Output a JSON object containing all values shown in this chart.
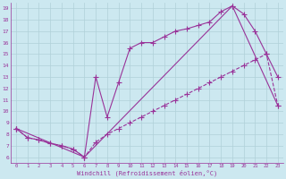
{
  "xlabel": "Windchill (Refroidissement éolien,°C)",
  "bg_color": "#cce8f0",
  "line_color": "#993399",
  "grid_color": "#b0d0d8",
  "series1_x": [
    0,
    1,
    2,
    3,
    4,
    5,
    6,
    7,
    8,
    9,
    10,
    11,
    12,
    13,
    14,
    15,
    16,
    17,
    18,
    19,
    20,
    21,
    22,
    23
  ],
  "series1_y": [
    8.5,
    7.7,
    7.5,
    7.2,
    7.0,
    6.7,
    6.0,
    13.0,
    9.5,
    12.5,
    15.5,
    16.0,
    16.0,
    16.5,
    17.0,
    17.2,
    17.5,
    17.8,
    18.7,
    19.2,
    18.5,
    17.0,
    15.0,
    13.0
  ],
  "series2_x": [
    0,
    1,
    2,
    3,
    4,
    5,
    6,
    7,
    8,
    9,
    10,
    11,
    12,
    13,
    14,
    15,
    16,
    17,
    18,
    19,
    20,
    21,
    22,
    23
  ],
  "series2_y": [
    8.5,
    7.7,
    7.5,
    7.2,
    7.0,
    6.7,
    6.0,
    7.3,
    8.0,
    8.5,
    9.0,
    9.5,
    10.0,
    10.5,
    11.0,
    11.5,
    12.0,
    12.5,
    13.0,
    13.5,
    14.0,
    14.5,
    15.0,
    10.5
  ],
  "series3_x": [
    0,
    6,
    19,
    23
  ],
  "series3_y": [
    8.5,
    6.0,
    19.2,
    10.5
  ],
  "xlim": [
    -0.5,
    23.5
  ],
  "ylim": [
    5.5,
    19.5
  ],
  "yticks": [
    6,
    7,
    8,
    9,
    10,
    11,
    12,
    13,
    14,
    15,
    16,
    17,
    18,
    19
  ],
  "xticks": [
    0,
    1,
    2,
    3,
    4,
    5,
    6,
    7,
    8,
    9,
    10,
    11,
    12,
    13,
    14,
    15,
    16,
    17,
    18,
    19,
    20,
    21,
    22,
    23
  ]
}
